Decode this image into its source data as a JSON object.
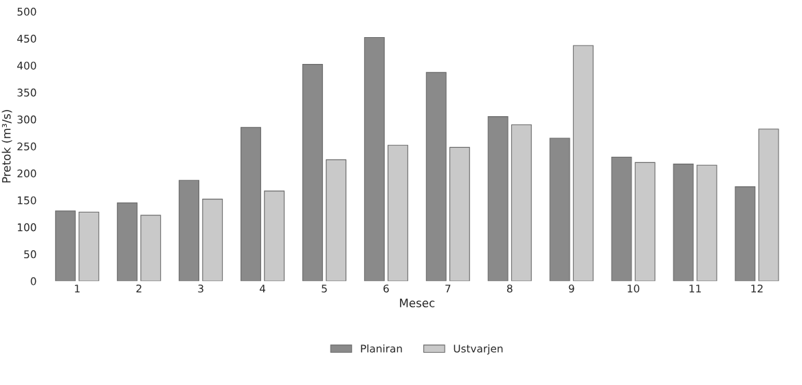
{
  "chart_data": {
    "type": "bar",
    "xlabel": "Mesec",
    "ylabel": "Pretok (m³/s)",
    "categories": [
      "1",
      "2",
      "3",
      "4",
      "5",
      "6",
      "7",
      "8",
      "9",
      "10",
      "11",
      "12"
    ],
    "series": [
      {
        "name": "Planiran",
        "color": "#8a8a8a",
        "values": [
          130,
          145,
          187,
          285,
          402,
          452,
          387,
          305,
          265,
          230,
          217,
          175
        ]
      },
      {
        "name": "Ustvarjen",
        "color": "#c9c9c9",
        "values": [
          128,
          122,
          152,
          167,
          225,
          252,
          248,
          290,
          437,
          220,
          215,
          282
        ]
      }
    ],
    "ylim": [
      0,
      500
    ],
    "yticks": [
      0,
      50,
      100,
      150,
      200,
      250,
      300,
      350,
      400,
      450,
      500
    ],
    "grid": false,
    "legend": "bottom"
  }
}
